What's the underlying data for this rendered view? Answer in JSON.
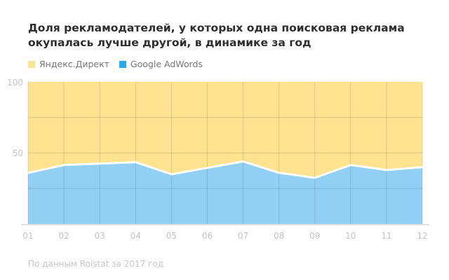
{
  "title": "Доля рекламодателей, у которых одна поисковая реклама окупалась лучше другой, в динамике за год",
  "source": "По данным Roistat за 2017 год",
  "chart_data": {
    "type": "area",
    "stacked": true,
    "categories": [
      "01",
      "02",
      "03",
      "04",
      "05",
      "06",
      "07",
      "08",
      "09",
      "10",
      "11",
      "12"
    ],
    "series": [
      {
        "name": "Google AdWords",
        "color": "#91cff4",
        "values": [
          36,
          41.5,
          42.5,
          43.5,
          35,
          39.5,
          44,
          36,
          32.5,
          41.5,
          38,
          40
        ]
      },
      {
        "name": "Яндекс.Директ",
        "color": "#fde28f",
        "values": [
          64,
          58.5,
          57.5,
          56.5,
          65,
          60.5,
          56,
          64,
          67.5,
          58.5,
          62,
          60
        ]
      }
    ],
    "yticks": [
      "100",
      "50"
    ],
    "ylim": [
      0,
      100
    ],
    "grid": true,
    "legend": "top-left"
  }
}
